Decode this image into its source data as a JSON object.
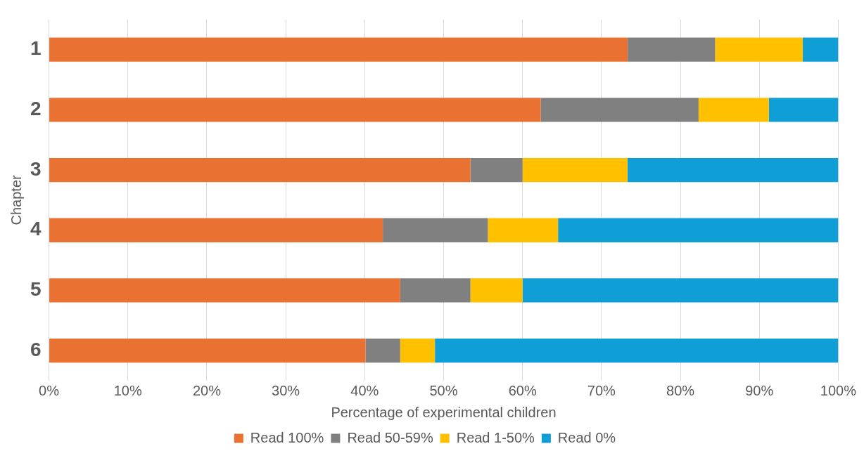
{
  "chart_data": {
    "type": "bar",
    "orientation": "horizontal",
    "stacked": true,
    "xlabel": "Percentage of experimental children",
    "ylabel": "Chapter",
    "categories": [
      "1",
      "2",
      "3",
      "4",
      "5",
      "6"
    ],
    "series": [
      {
        "name": "Read 100%",
        "color": "#e97132",
        "values": [
          73.3,
          62.3,
          53.4,
          42.3,
          44.5,
          40.1
        ]
      },
      {
        "name": "Read 50-59%",
        "color": "#808080",
        "values": [
          11.1,
          20.0,
          6.6,
          13.3,
          8.9,
          4.4
        ]
      },
      {
        "name": "Read 1-50%",
        "color": "#ffc000",
        "values": [
          11.1,
          8.9,
          13.3,
          8.9,
          6.6,
          4.4
        ]
      },
      {
        "name": "Read 0%",
        "color": "#0f9ed5",
        "values": [
          4.5,
          8.8,
          26.7,
          35.5,
          40.0,
          51.1
        ]
      }
    ],
    "xlim": [
      0,
      100
    ],
    "xticks": [
      {
        "value": 0,
        "label": "0%"
      },
      {
        "value": 10,
        "label": "10%"
      },
      {
        "value": 20,
        "label": "20%"
      },
      {
        "value": 30,
        "label": "30%"
      },
      {
        "value": 40,
        "label": "40%"
      },
      {
        "value": 50,
        "label": "50%"
      },
      {
        "value": 60,
        "label": "60%"
      },
      {
        "value": 70,
        "label": "70%"
      },
      {
        "value": 80,
        "label": "80%"
      },
      {
        "value": 90,
        "label": "90%"
      },
      {
        "value": 100,
        "label": "100%"
      }
    ],
    "grid": "x",
    "legend": "bottom"
  }
}
